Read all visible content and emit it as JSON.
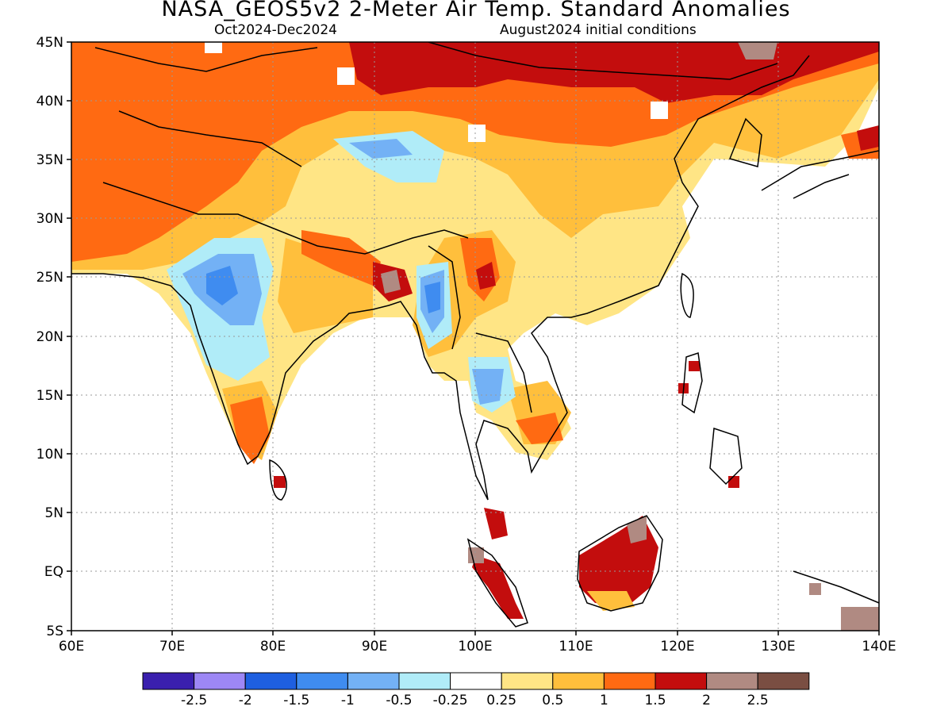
{
  "title": "NASA_GEOS5v2 2-Meter Air Temp. Standard Anomalies",
  "subtitle_left": "Oct2024-Dec2024",
  "subtitle_right": "August2024 initial conditions",
  "lat_labels": [
    "45N",
    "40N",
    "35N",
    "30N",
    "25N",
    "20N",
    "15N",
    "10N",
    "5N",
    "EQ",
    "5S"
  ],
  "lon_labels": [
    "60E",
    "70E",
    "80E",
    "90E",
    "100E",
    "110E",
    "120E",
    "130E",
    "140E"
  ],
  "legend": {
    "colors": [
      "#3a1fae",
      "#9d87f5",
      "#1e5fe0",
      "#3f8cf0",
      "#73b1f5",
      "#b0ecf8",
      "#ffffff",
      "#ffe585",
      "#ffbf3c",
      "#ff6a12",
      "#c30d0d",
      "#b08a82",
      "#7a4e42"
    ],
    "labels": [
      "-2.5",
      "-2",
      "-1.5",
      "-1",
      "-0.5",
      "-0.25",
      "0.25",
      "0.5",
      "1",
      "1.5",
      "2",
      "2.5"
    ]
  },
  "colors": {
    "warm_light": "#ffe585",
    "warm": "#ffbf3c",
    "warmer": "#ff6a12",
    "hot": "#c30d0d",
    "very_hot": "#b08a82",
    "cool_light": "#b0ecf8",
    "cool": "#73b1f5",
    "cooler": "#3f8cf0"
  }
}
